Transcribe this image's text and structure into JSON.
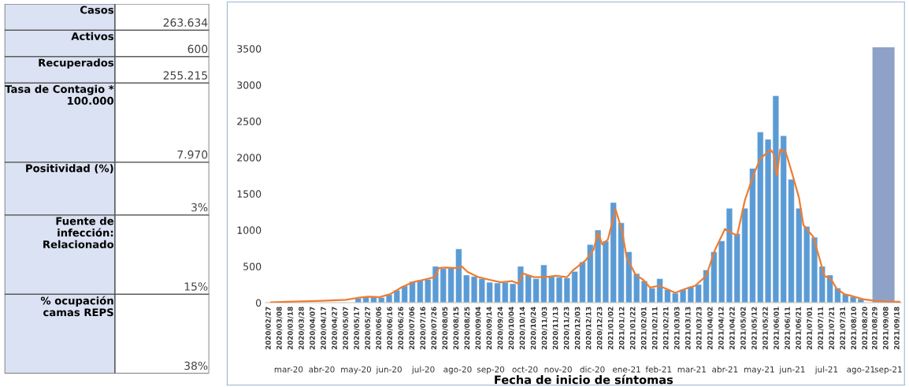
{
  "chart_data": [
    {
      "type": "other",
      "categories": [
        "Casos",
        "Activos",
        "Recuperados",
        "Tasa de Contagio * 100.000",
        "Positividad (%)",
        "Fuente de infección: Relacionado",
        "% ocupación camas REPS"
      ],
      "value_labels": [
        "263.634",
        "600",
        "255.215",
        "7.970",
        "3%",
        "15%",
        "38%"
      ]
    },
    {
      "type": "bar",
      "xlabel": "Fecha de inicio de síntomas",
      "ylim": [
        0,
        3520
      ],
      "yticks": [
        0,
        500,
        1000,
        1500,
        2000,
        2500,
        3000,
        3500
      ],
      "grid": false,
      "legend": false,
      "xlim": [
        "2020-02-24",
        "2021-09-22"
      ],
      "x2lim": [
        "2020-02-24",
        "2021-09-22"
      ],
      "xticks": [
        {
          "value": "2020-02-27",
          "label": "2020/02/27"
        },
        {
          "value": "2020-03-08",
          "label": "2020/03/08"
        },
        {
          "value": "2020-03-18",
          "label": "2020/03/18"
        },
        {
          "value": "2020-03-28",
          "label": "2020/03/28"
        },
        {
          "value": "2020-04-07",
          "label": "2020/04/07"
        },
        {
          "value": "2020-04-17",
          "label": "2020/04/17"
        },
        {
          "value": "2020-04-27",
          "label": "2020/04/27"
        },
        {
          "value": "2020-05-07",
          "label": "2020/05/07"
        },
        {
          "value": "2020-05-17",
          "label": "2020/05/17"
        },
        {
          "value": "2020-05-27",
          "label": "2020/05/27"
        },
        {
          "value": "2020-06-06",
          "label": "2020/06/06"
        },
        {
          "value": "2020-06-16",
          "label": "2020/06/16"
        },
        {
          "value": "2020-06-26",
          "label": "2020/06/26"
        },
        {
          "value": "2020-07-06",
          "label": "2020/07/06"
        },
        {
          "value": "2020-07-16",
          "label": "2020/07/16"
        },
        {
          "value": "2020-07-26",
          "label": "2020/07/26"
        },
        {
          "value": "2020-08-05",
          "label": "2020/08/05"
        },
        {
          "value": "2020-08-15",
          "label": "2020/08/15"
        },
        {
          "value": "2020-08-25",
          "label": "2020/08/25"
        },
        {
          "value": "2020-09-04",
          "label": "2020/09/04"
        },
        {
          "value": "2020-09-14",
          "label": "2020/09/14"
        },
        {
          "value": "2020-09-24",
          "label": "2020/09/24"
        },
        {
          "value": "2020-10-04",
          "label": "2020/10/04"
        },
        {
          "value": "2020-10-14",
          "label": "2020/10/14"
        },
        {
          "value": "2020-10-24",
          "label": "2020/10/24"
        },
        {
          "value": "2020-11-03",
          "label": "2020/11/03"
        },
        {
          "value": "2020-11-13",
          "label": "2020/11/13"
        },
        {
          "value": "2020-11-23",
          "label": "2020/11/23"
        },
        {
          "value": "2020-12-03",
          "label": "2020/12/03"
        },
        {
          "value": "2020-12-13",
          "label": "2020/12/13"
        },
        {
          "value": "2020-12-23",
          "label": "2020/12/23"
        },
        {
          "value": "2021-01-02",
          "label": "2021/01/02"
        },
        {
          "value": "2021-01-12",
          "label": "2021/01/12"
        },
        {
          "value": "2021-01-22",
          "label": "2021/01/22"
        },
        {
          "value": "2021-02-01",
          "label": "2021/02/01"
        },
        {
          "value": "2021-02-11",
          "label": "2021/02/11"
        },
        {
          "value": "2021-02-21",
          "label": "2021/02/21"
        },
        {
          "value": "2021-03-03",
          "label": "2021/03/03"
        },
        {
          "value": "2021-03-13",
          "label": "2021/03/13"
        },
        {
          "value": "2021-03-23",
          "label": "2021/03/23"
        },
        {
          "value": "2021-04-02",
          "label": "2021/04/02"
        },
        {
          "value": "2021-04-12",
          "label": "2021/04/12"
        },
        {
          "value": "2021-04-22",
          "label": "2021/04/22"
        },
        {
          "value": "2021-05-02",
          "label": "2021/05/02"
        },
        {
          "value": "2021-05-12",
          "label": "2021/05/12"
        },
        {
          "value": "2021-05-22",
          "label": "2021/05/22"
        },
        {
          "value": "2021-06-01",
          "label": "2021/06/01"
        },
        {
          "value": "2021-06-11",
          "label": "2021/06/11"
        },
        {
          "value": "2021-06-21",
          "label": "2021/06/21"
        },
        {
          "value": "2021-07-01",
          "label": "2021/07/01"
        },
        {
          "value": "2021-07-11",
          "label": "2021/07/11"
        },
        {
          "value": "2021-07-21",
          "label": "2021/07/21"
        },
        {
          "value": "2021-07-31",
          "label": "2021/07/31"
        },
        {
          "value": "2021-08-10",
          "label": "2021/08/10"
        },
        {
          "value": "2021-08-20",
          "label": "2021/08/20"
        },
        {
          "value": "2021-08-29",
          "label": "2021/08/29"
        },
        {
          "value": "2021-09-08",
          "label": "2021/09/08"
        },
        {
          "value": "2021-09-18",
          "label": "2021/09/18"
        }
      ],
      "x2ticks": [
        {
          "value": "2020-03-16",
          "label": "mar-20"
        },
        {
          "value": "2020-04-15",
          "label": "abr-20"
        },
        {
          "value": "2020-05-16",
          "label": "may-20"
        },
        {
          "value": "2020-06-15",
          "label": "jun-20"
        },
        {
          "value": "2020-07-16",
          "label": "jul-20"
        },
        {
          "value": "2020-08-16",
          "label": "ago-20"
        },
        {
          "value": "2020-09-15",
          "label": "sep-20"
        },
        {
          "value": "2020-10-16",
          "label": "oct-20"
        },
        {
          "value": "2020-11-15",
          "label": "nov-20"
        },
        {
          "value": "2020-12-16",
          "label": "dic-20"
        },
        {
          "value": "2021-01-16",
          "label": "ene-21"
        },
        {
          "value": "2021-02-14",
          "label": "feb-21"
        },
        {
          "value": "2021-03-16",
          "label": "mar-21"
        },
        {
          "value": "2021-04-15",
          "label": "abr-21"
        },
        {
          "value": "2021-05-16",
          "label": "may-21"
        },
        {
          "value": "2021-06-15",
          "label": "jun-21"
        },
        {
          "value": "2021-07-16",
          "label": "jul-21"
        },
        {
          "value": "2021-08-16",
          "label": "ago-21"
        },
        {
          "value": "2021-09-10",
          "label": "sep-21"
        }
      ],
      "bands": [
        {
          "axis": "x",
          "from": "2021-08-27",
          "to": "2021-09-15",
          "color": "#8ea2c8"
        }
      ],
      "series": [
        {
          "type": "bar",
          "color": "#5b9bd5",
          "x": [
            "2020-05-18",
            "2020-05-25",
            "2020-06-01",
            "2020-06-08",
            "2020-06-15",
            "2020-06-22",
            "2020-06-29",
            "2020-07-06",
            "2020-07-13",
            "2020-07-20",
            "2020-07-27",
            "2020-08-03",
            "2020-08-10",
            "2020-08-17",
            "2020-08-24",
            "2020-08-31",
            "2020-09-07",
            "2020-09-14",
            "2020-09-21",
            "2020-09-28",
            "2020-10-05",
            "2020-10-12",
            "2020-10-19",
            "2020-10-26",
            "2020-11-02",
            "2020-11-09",
            "2020-11-16",
            "2020-11-23",
            "2020-11-30",
            "2020-12-07",
            "2020-12-14",
            "2020-12-21",
            "2020-12-28",
            "2021-01-04",
            "2021-01-11",
            "2021-01-18",
            "2021-01-25",
            "2021-02-01",
            "2021-02-08",
            "2021-02-15",
            "2021-02-22",
            "2021-03-01",
            "2021-03-08",
            "2021-03-15",
            "2021-03-22",
            "2021-03-29",
            "2021-04-05",
            "2021-04-12",
            "2021-04-19",
            "2021-04-26",
            "2021-05-03",
            "2021-05-10",
            "2021-05-17",
            "2021-05-24",
            "2021-05-31",
            "2021-06-07",
            "2021-06-14",
            "2021-06-21",
            "2021-06-28",
            "2021-07-05",
            "2021-07-12",
            "2021-07-19",
            "2021-07-26",
            "2021-08-02",
            "2021-08-09",
            "2021-08-16"
          ],
          "values": [
            60,
            80,
            90,
            70,
            110,
            170,
            230,
            290,
            310,
            320,
            500,
            470,
            480,
            740,
            380,
            360,
            330,
            280,
            270,
            280,
            260,
            500,
            380,
            330,
            520,
            360,
            350,
            340,
            430,
            560,
            800,
            1000,
            850,
            1380,
            1100,
            700,
            400,
            300,
            200,
            330,
            180,
            130,
            180,
            220,
            250,
            450,
            700,
            850,
            1300,
            950,
            1300,
            1850,
            2350,
            2250,
            2850,
            2300,
            1700,
            1300,
            1050,
            900,
            500,
            380,
            200,
            120,
            80,
            50
          ]
        },
        {
          "type": "line",
          "color": "#ed7d31",
          "x": [
            "2020-02-29",
            "2020-03-15",
            "2020-04-15",
            "2020-05-07",
            "2020-05-17",
            "2020-05-27",
            "2020-06-06",
            "2020-06-16",
            "2020-06-26",
            "2020-07-06",
            "2020-07-16",
            "2020-07-26",
            "2020-07-30",
            "2020-08-05",
            "2020-08-15",
            "2020-08-20",
            "2020-08-25",
            "2020-09-04",
            "2020-09-14",
            "2020-09-24",
            "2020-10-04",
            "2020-10-10",
            "2020-10-14",
            "2020-10-24",
            "2020-11-03",
            "2020-11-13",
            "2020-11-23",
            "2020-11-28",
            "2020-12-10",
            "2020-12-17",
            "2020-12-21",
            "2020-12-25",
            "2020-12-30",
            "2021-01-06",
            "2021-01-12",
            "2021-01-16",
            "2021-01-24",
            "2021-01-31",
            "2021-02-06",
            "2021-02-14",
            "2021-02-21",
            "2021-03-01",
            "2021-03-10",
            "2021-03-19",
            "2021-03-29",
            "2021-04-06",
            "2021-04-15",
            "2021-04-21",
            "2021-04-26",
            "2021-05-03",
            "2021-05-11",
            "2021-05-17",
            "2021-05-26",
            "2021-05-29",
            "2021-06-01",
            "2021-06-04",
            "2021-06-09",
            "2021-06-15",
            "2021-06-21",
            "2021-06-25",
            "2021-07-04",
            "2021-07-10",
            "2021-07-14",
            "2021-07-20",
            "2021-07-25",
            "2021-08-01",
            "2021-08-08",
            "2021-08-18",
            "2021-08-27",
            "2021-09-08",
            "2021-09-20"
          ],
          "values": [
            5,
            12,
            25,
            40,
            65,
            82,
            75,
            118,
            208,
            280,
            315,
            351,
            477,
            485,
            477,
            495,
            423,
            351,
            315,
            280,
            298,
            262,
            405,
            351,
            351,
            370,
            351,
            441,
            585,
            728,
            961,
            800,
            872,
            1284,
            980,
            620,
            387,
            315,
            208,
            233,
            190,
            136,
            190,
            233,
            369,
            728,
            1015,
            961,
            926,
            1410,
            1769,
            1984,
            2110,
            2056,
            1750,
            2110,
            2074,
            1769,
            1446,
            1069,
            907,
            585,
            369,
            323,
            194,
            118,
            90,
            47,
            29,
            16,
            11
          ]
        }
      ]
    }
  ]
}
